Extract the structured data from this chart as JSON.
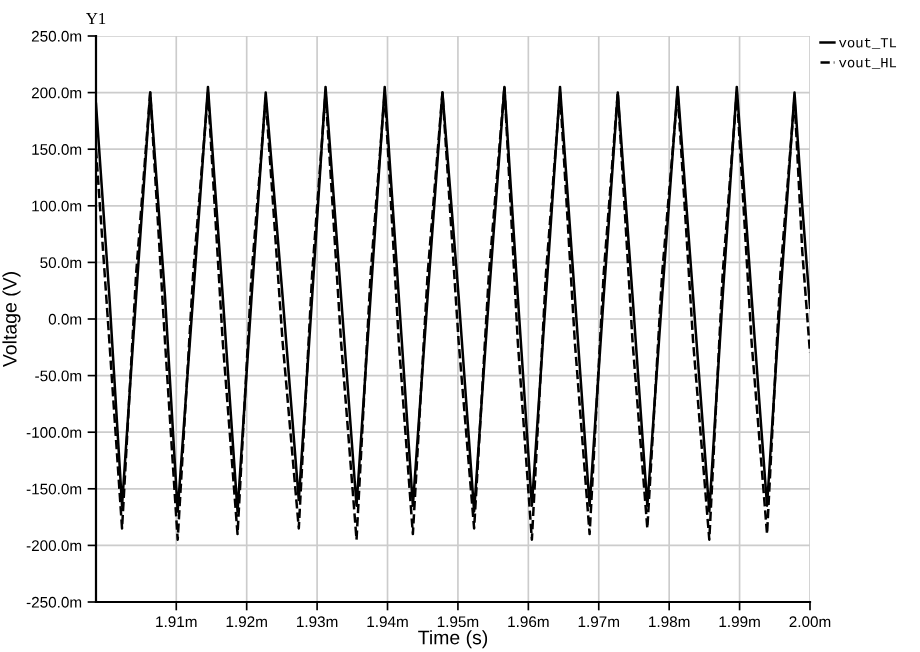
{
  "chart_data": {
    "type": "line",
    "xlabel": "Time (s)",
    "ylabel": "Voltage (V)",
    "annotations": [
      "Y1"
    ],
    "x": [
      1.8986,
      1.9005,
      1.9023,
      1.9043,
      1.9063,
      1.9084,
      1.9102,
      1.9124,
      1.9145,
      1.9166,
      1.9187,
      1.9207,
      1.9227,
      1.9251,
      1.9274,
      1.9293,
      1.9312,
      1.9334,
      1.9356,
      1.9376,
      1.9396,
      1.9416,
      1.9436,
      1.9457,
      1.9478,
      1.9501,
      1.9523,
      1.9544,
      1.9566,
      1.9585,
      1.9605,
      1.9625,
      1.9645,
      1.9666,
      1.9687,
      1.9707,
      1.9727,
      1.9748,
      1.9769,
      1.979,
      1.9812,
      1.9834,
      1.9857,
      1.9876,
      1.9896,
      1.9917,
      1.9939,
      1.9958,
      1.9978,
      1.9989,
      2.0
    ],
    "series": [
      {
        "name": "vout_TL",
        "color": "#000000",
        "line_style": "solid",
        "values": [
          190,
          20,
          -165,
          20,
          200,
          20,
          -170,
          20,
          205,
          20,
          -170,
          20,
          200,
          20,
          -160,
          20,
          205,
          20,
          -165,
          20,
          205,
          20,
          -165,
          20,
          200,
          20,
          -170,
          20,
          205,
          20,
          -165,
          20,
          205,
          20,
          -165,
          20,
          200,
          20,
          -165,
          20,
          205,
          20,
          -170,
          20,
          205,
          20,
          -165,
          20,
          200,
          100,
          10
        ]
      },
      {
        "name": "vout_HL",
        "color": "#000000",
        "line_style": "dashed",
        "values": [
          150,
          -20,
          -185,
          40,
          200,
          -20,
          -195,
          40,
          200,
          -20,
          -190,
          40,
          195,
          -20,
          -185,
          40,
          200,
          -20,
          -195,
          40,
          200,
          -20,
          -190,
          40,
          200,
          -20,
          -185,
          40,
          205,
          -20,
          -195,
          40,
          200,
          -20,
          -190,
          40,
          200,
          -20,
          -185,
          40,
          200,
          -20,
          -195,
          40,
          200,
          -20,
          -190,
          40,
          195,
          60,
          -30
        ]
      }
    ],
    "xlim": [
      1.8986,
      2.0
    ],
    "xticks": [
      {
        "value": 1.91,
        "label": "1.91m"
      },
      {
        "value": 1.92,
        "label": "1.92m"
      },
      {
        "value": 1.93,
        "label": "1.93m"
      },
      {
        "value": 1.94,
        "label": "1.94m"
      },
      {
        "value": 1.95,
        "label": "1.95m"
      },
      {
        "value": 1.96,
        "label": "1.96m"
      },
      {
        "value": 1.97,
        "label": "1.97m"
      },
      {
        "value": 1.98,
        "label": "1.98m"
      },
      {
        "value": 1.99,
        "label": "1.99m"
      },
      {
        "value": 2.0,
        "label": "2.00m"
      }
    ],
    "ylim": [
      -250,
      250
    ],
    "yticks": [
      {
        "value": -250,
        "label": "-250.0m"
      },
      {
        "value": -200,
        "label": "-200.0m"
      },
      {
        "value": -150,
        "label": "-150.0m"
      },
      {
        "value": -100,
        "label": "-100.0m"
      },
      {
        "value": -50,
        "label": "-50.0m"
      },
      {
        "value": 0,
        "label": "0.0m"
      },
      {
        "value": 50,
        "label": "50.0m"
      },
      {
        "value": 100,
        "label": "100.0m"
      },
      {
        "value": 150,
        "label": "150.0m"
      },
      {
        "value": 200,
        "label": "200.0m"
      },
      {
        "value": 250,
        "label": "250.0m"
      }
    ],
    "grid": true,
    "legend": "top right",
    "marker": "none"
  }
}
